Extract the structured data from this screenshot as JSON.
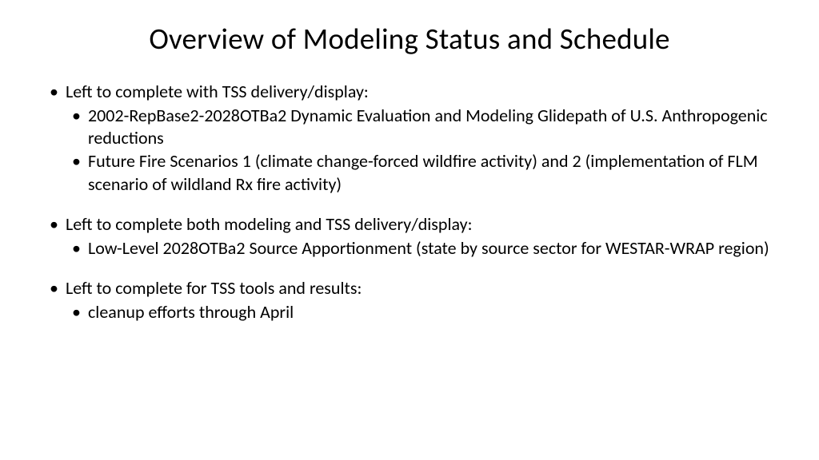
{
  "title": "Overview of Modeling Status and Schedule",
  "bullets": [
    {
      "text": "Left to complete with TSS delivery/display:",
      "children": [
        "2002-RepBase2-2028OTBa2 Dynamic Evaluation and Modeling Glidepath of U.S. Anthropogenic reductions",
        "Future Fire Scenarios 1 (climate change-forced wildfire activity) and 2 (implementation of FLM scenario of wildland Rx fire activity)"
      ]
    },
    {
      "text": "Left to complete both modeling and TSS delivery/display:",
      "children": [
        "Low-Level 2028OTBa2 Source Apportionment (state by source sector for WESTAR-WRAP region)"
      ]
    },
    {
      "text": "Left to complete for TSS tools and results:",
      "children": [
        "cleanup efforts through April"
      ]
    }
  ],
  "colors": {
    "background": "#ffffff",
    "text": "#000000"
  },
  "typography": {
    "title_fontsize": 37,
    "body_fontsize": 22,
    "font_family": "Calibri"
  }
}
